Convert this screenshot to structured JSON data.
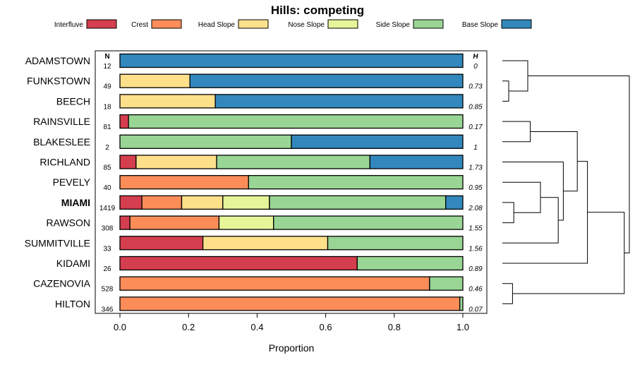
{
  "chart_data": {
    "type": "bar",
    "orientation": "horizontal",
    "stacked": true,
    "title": "Hills: competing",
    "xlabel": "Proportion",
    "ylabel": "",
    "xlim": [
      0,
      1
    ],
    "x_ticks": [
      "0.0",
      "0.2",
      "0.4",
      "0.6",
      "0.8",
      "1.0"
    ],
    "n_header": "N",
    "h_header": "H",
    "emphasized_category": "MIAMI",
    "legend": [
      {
        "name": "Interfluve",
        "color": "#d53e4f"
      },
      {
        "name": "Crest",
        "color": "#fc8d59"
      },
      {
        "name": "Head Slope",
        "color": "#fee08b"
      },
      {
        "name": "Nose Slope",
        "color": "#e6f598"
      },
      {
        "name": "Side Slope",
        "color": "#99d594"
      },
      {
        "name": "Base Slope",
        "color": "#3288bd"
      }
    ],
    "categories": [
      "ADAMSTOWN",
      "FUNKSTOWN",
      "BEECH",
      "RAINSVILLE",
      "BLAKESLEE",
      "RICHLAND",
      "PEVELY",
      "MIAMI",
      "RAWSON",
      "SUMMITVILLE",
      "KIDAMI",
      "CAZENOVIA",
      "HILTON"
    ],
    "n": [
      "12",
      "49",
      "18",
      "81",
      "2",
      "85",
      "40",
      "1419",
      "308",
      "33",
      "26",
      "528",
      "346"
    ],
    "h": [
      "0",
      "0.73",
      "0.85",
      "0.17",
      "1",
      "1.73",
      "0.95",
      "2.08",
      "1.55",
      "1.56",
      "0.89",
      "0.46",
      "0.07"
    ],
    "series": [
      {
        "name": "Interfluve",
        "values": [
          0,
          0,
          0,
          0.025,
          0,
          0.047,
          0,
          0.064,
          0.029,
          0.242,
          0.692,
          0,
          0
        ]
      },
      {
        "name": "Crest",
        "values": [
          0,
          0,
          0,
          0,
          0,
          0,
          0.375,
          0.116,
          0.26,
          0,
          0,
          0.903,
          0.991
        ]
      },
      {
        "name": "Head Slope",
        "values": [
          0,
          0.204,
          0.278,
          0,
          0,
          0.235,
          0,
          0.12,
          0,
          0.364,
          0,
          0,
          0
        ]
      },
      {
        "name": "Nose Slope",
        "values": [
          0,
          0,
          0,
          0,
          0,
          0,
          0,
          0.136,
          0.159,
          0,
          0,
          0,
          0
        ]
      },
      {
        "name": "Side Slope",
        "values": [
          0,
          0,
          0,
          0.975,
          0.5,
          0.447,
          0.625,
          0.514,
          0.552,
          0.394,
          0.308,
          0.097,
          0.009
        ]
      },
      {
        "name": "Base Slope",
        "values": [
          1,
          0.796,
          0.722,
          0,
          0.5,
          0.271,
          0,
          0.05,
          0,
          0,
          0,
          0,
          0
        ]
      }
    ],
    "dendrogram": {
      "type": "hierarchical-clustering",
      "leaf_order": [
        "ADAMSTOWN",
        "FUNKSTOWN",
        "BEECH",
        "RAINSVILLE",
        "BLAKESLEE",
        "RICHLAND",
        "PEVELY",
        "MIAMI",
        "RAWSON",
        "SUMMITVILLE",
        "KIDAMI",
        "CAZENOVIA",
        "HILTON"
      ],
      "merges": [
        {
          "a": "FUNKSTOWN",
          "b": "BEECH",
          "height": 0.05
        },
        {
          "a": "ADAMSTOWN",
          "b": "(FUNKSTOWN+BEECH)",
          "height": 0.2
        },
        {
          "a": "RAINSVILLE",
          "b": "BLAKESLEE",
          "height": 0.22
        },
        {
          "a": "MIAMI",
          "b": "RAWSON",
          "height": 0.09
        },
        {
          "a": "PEVELY",
          "b": "(MIAMI+RAWSON)",
          "height": 0.3
        },
        {
          "a": "SUMMITVILLE",
          "b": "(PEVELY+MIAMI+RAWSON)",
          "height": 0.44
        },
        {
          "a": "RICHLAND",
          "b": "(PEVELY+MIAMI+RAWSON+SUMMITVILLE)",
          "height": 0.48
        },
        {
          "a": "(RAINSVILLE+BLAKESLEE)",
          "b": "(RICHLAND+PEVELY+MIAMI+RAWSON+SUMMITVILLE)",
          "height": 0.59
        },
        {
          "a": "KIDAMI",
          "b": "(RAINSVILLE+BLAKESLEE+RICHLAND+PEVELY+MIAMI+RAWSON+SUMMITVILLE)",
          "height": 0.67
        },
        {
          "a": "CAZENOVIA",
          "b": "HILTON",
          "height": 0.08
        },
        {
          "a": "(KIDAMI+...)",
          "b": "(CAZENOVIA+HILTON)",
          "height": 0.96
        },
        {
          "a": "(ADAMSTOWN+FUNKSTOWN+BEECH)",
          "b": "(KIDAMI+...+HILTON)",
          "height": 1.0
        }
      ]
    }
  }
}
